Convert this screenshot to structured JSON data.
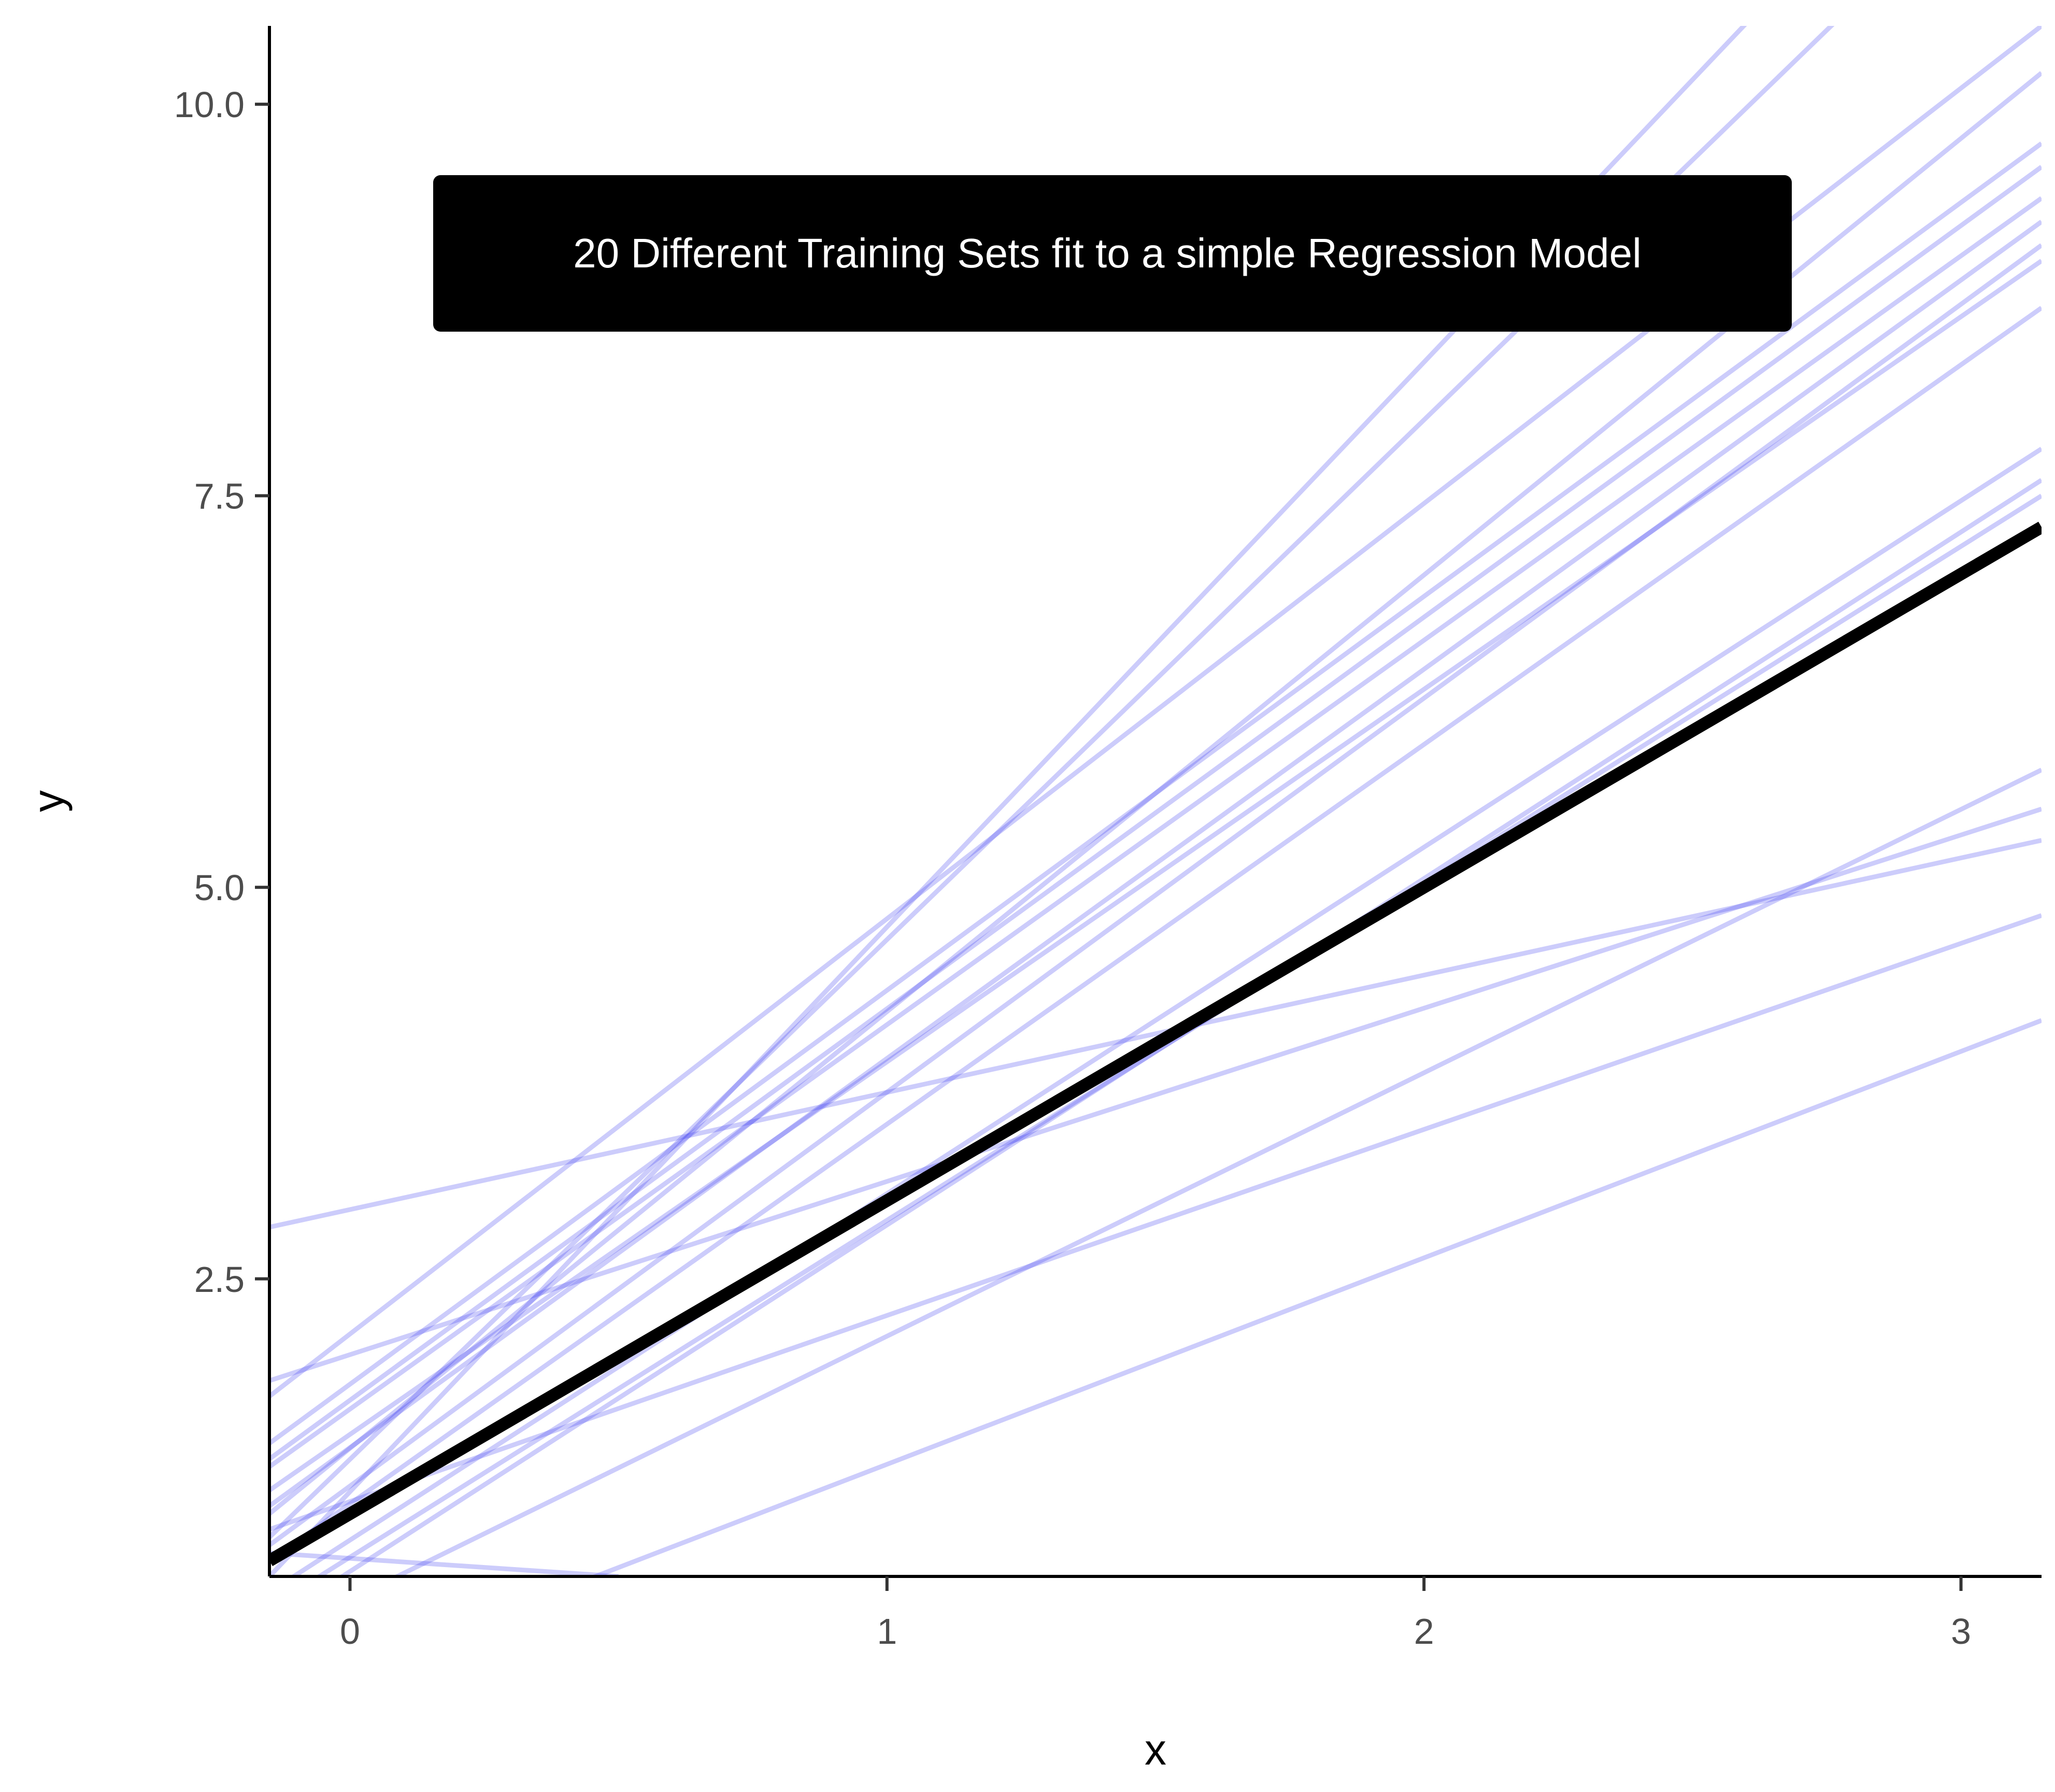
{
  "chart_data": {
    "type": "line",
    "title": "",
    "xlabel": "x",
    "ylabel": "y",
    "xlim": [
      -0.15,
      3.15
    ],
    "ylim": [
      0.6,
      10.5
    ],
    "x_ticks": [
      0,
      1,
      2,
      3
    ],
    "x_tick_labels": [
      "0",
      "1",
      "2",
      "3"
    ],
    "y_ticks": [
      2.5,
      5.0,
      7.5,
      10.0
    ],
    "y_tick_labels": [
      "2.5",
      "5.0",
      "7.5",
      "10.0"
    ],
    "grid": false,
    "annotation": "20 Different Training Sets fit to a simple Regression Model",
    "colors": {
      "fits": "#3333ee",
      "true_line": "#000000",
      "annotation_bg": "#000000",
      "annotation_text": "#ffffff",
      "axis": "#000000"
    },
    "true_line": {
      "x": [
        -0.15,
        3.15
      ],
      "y": [
        0.7,
        7.3
      ]
    },
    "series": [
      {
        "x": [
          -0.15,
          3.15
        ],
        "y": [
          0.85,
          11.8
        ]
      },
      {
        "x": [
          -0.15,
          3.15
        ],
        "y": [
          0.6,
          12.5
        ]
      },
      {
        "x": [
          -0.15,
          3.15
        ],
        "y": [
          1.75,
          10.5
        ]
      },
      {
        "x": [
          -0.15,
          3.15
        ],
        "y": [
          1.0,
          10.2
        ]
      },
      {
        "x": [
          -0.15,
          3.15
        ],
        "y": [
          1.45,
          9.75
        ]
      },
      {
        "x": [
          -0.15,
          3.15
        ],
        "y": [
          1.3,
          9.4
        ]
      },
      {
        "x": [
          -0.15,
          3.15
        ],
        "y": [
          1.05,
          9.25
        ]
      },
      {
        "x": [
          -0.15,
          3.15
        ],
        "y": [
          0.8,
          9.1
        ]
      },
      {
        "x": [
          -0.15,
          3.15
        ],
        "y": [
          0.7,
          8.7
        ]
      },
      {
        "x": [
          -0.15,
          3.15
        ],
        "y": [
          0.5,
          7.8
        ]
      },
      {
        "x": [
          -0.15,
          3.15
        ],
        "y": [
          0.3,
          7.6
        ]
      },
      {
        "x": [
          -0.15,
          3.15
        ],
        "y": [
          0.2,
          5.75
        ]
      },
      {
        "x": [
          -0.15,
          3.15
        ],
        "y": [
          2.83,
          5.3
        ]
      },
      {
        "x": [
          -0.15,
          3.15
        ],
        "y": [
          1.85,
          5.5
        ]
      },
      {
        "x": [
          -0.15,
          3.15
        ],
        "y": [
          0.9,
          4.82
        ]
      },
      {
        "x": [
          -0.15,
          3.15
        ],
        "y": [
          -0.2,
          4.15
        ]
      },
      {
        "x": [
          -0.15,
          0.5
        ],
        "y": [
          0.75,
          0.6
        ]
      },
      {
        "x": [
          -0.15,
          3.15
        ],
        "y": [
          1.35,
          9.6
        ]
      },
      {
        "x": [
          -0.15,
          3.15
        ],
        "y": [
          1.15,
          9.0
        ]
      },
      {
        "x": [
          -0.15,
          3.15
        ],
        "y": [
          0.4,
          7.5
        ]
      }
    ]
  }
}
